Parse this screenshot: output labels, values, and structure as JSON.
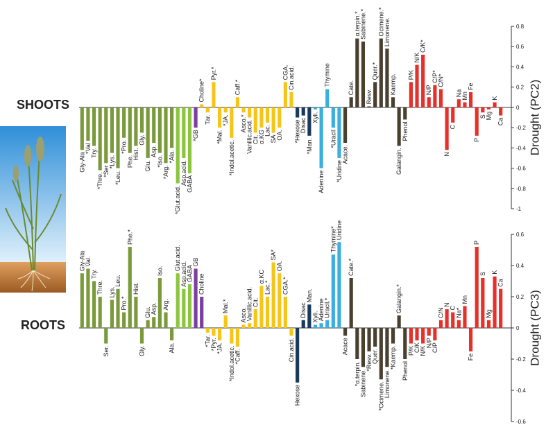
{
  "chart_data": [
    {
      "type": "bar",
      "title": "SHOOTS",
      "y_label": "Drought (PC2)",
      "categories": [
        "Gly-Ala",
        "*Val",
        "Try.",
        "*Thre.",
        "*Ser",
        "*Lys.",
        "*Leu.",
        "*Pro.",
        "Phe.",
        "Hist.",
        "Gly.",
        "Glu.",
        "Asp.",
        "*Iso.",
        "*Arg.",
        "*Ala.",
        "*Glut.acid.",
        "Asp.acid.",
        "GABA",
        "*GB",
        "Choline*",
        "Tar.",
        "Pyr.*",
        "*Mal.",
        "*JA.",
        "*Indol.acetic.",
        "Caff.*",
        "Asco.*",
        "Vanillic.acid.",
        "Cit.",
        "α.KG",
        "Lac.",
        "SA",
        "OA.",
        "CGA.",
        "Cin.acid.",
        "*Hexose",
        "Disac",
        "*Man.",
        "Xyli.",
        "Adenine",
        "Thymine",
        "*Uracil",
        "*Uridine",
        "Acace.",
        "Cate.",
        "α.terpin.*",
        "Sabinene.*",
        "Resv.",
        "Quer.*",
        "Ocimene.*",
        "Limonene.",
        "Kaemp.",
        "Galangin.",
        "Phenol",
        "P/K",
        "N/K",
        "C/K*",
        "N/P",
        "C/P*",
        "C/N*",
        "N",
        "C",
        "Na",
        "Mn",
        "Fe",
        "P",
        "S",
        "Mg",
        "K",
        "Ca"
      ],
      "values": [
        -0.42,
        -0.33,
        -0.38,
        -0.62,
        -0.55,
        -0.45,
        -0.6,
        -0.3,
        -0.45,
        -0.38,
        -0.25,
        -0.5,
        -0.35,
        -0.45,
        -0.55,
        -0.4,
        -0.75,
        -0.5,
        -0.65,
        -0.2,
        0.03,
        -0.05,
        0.25,
        -0.2,
        -0.05,
        -0.3,
        0.1,
        -0.05,
        -0.1,
        -0.25,
        -0.2,
        -0.15,
        -0.25,
        -0.2,
        0.25,
        0.15,
        -0.1,
        -0.08,
        -0.28,
        -0.02,
        -0.6,
        0.18,
        -0.2,
        -0.5,
        -0.35,
        0.1,
        0.68,
        0.65,
        0.01,
        0.25,
        0.68,
        0.58,
        0.1,
        -0.38,
        -0.12,
        0.25,
        0.42,
        0.52,
        0.1,
        0.22,
        0.18,
        -0.42,
        -0.15,
        0.08,
        0.05,
        0.15,
        -0.28,
        -0.05,
        -0.02,
        0.05,
        -0.08
      ],
      "colors": [
        "#7a9a3c",
        "#7a9a3c",
        "#7a9a3c",
        "#7a9a3c",
        "#7a9a3c",
        "#7a9a3c",
        "#7a9a3c",
        "#7a9a3c",
        "#7a9a3c",
        "#7a9a3c",
        "#7a9a3c",
        "#7a9a3c",
        "#7a9a3c",
        "#7a9a3c",
        "#7a9a3c",
        "#7a9a3c",
        "#8cc63f",
        "#8cc63f",
        "#8cc63f",
        "#7b3fa0",
        "#f5c518",
        "#f5c518",
        "#f5c518",
        "#f5c518",
        "#f5c518",
        "#f5c518",
        "#f5c518",
        "#f5c518",
        "#f5c518",
        "#f5c518",
        "#f5c518",
        "#f5c518",
        "#f5c518",
        "#f5c518",
        "#f5c518",
        "#f5c518",
        "#1a3a5c",
        "#1a3a5c",
        "#1a3a5c",
        "#3aaee0",
        "#3aaee0",
        "#3aaee0",
        "#3aaee0",
        "#3aaee0",
        "#4a4030",
        "#4a4030",
        "#4a4030",
        "#4a4030",
        "#4a4030",
        "#4a4030",
        "#4a4030",
        "#4a4030",
        "#4a4030",
        "#4a4030",
        "#4a4030",
        "#e8302a",
        "#e8302a",
        "#e8302a",
        "#e8302a",
        "#e8302a",
        "#e8302a",
        "#e8302a",
        "#e8302a",
        "#e8302a",
        "#e8302a",
        "#e8302a",
        "#e8302a",
        "#e8302a",
        "#e8302a",
        "#e8302a",
        "#e8302a"
      ],
      "ylim": [
        -1,
        0.8
      ],
      "yticks": [
        -1,
        -0.8,
        -0.6,
        -0.4,
        -0.2,
        0,
        0.2,
        0.4,
        0.6,
        0.8
      ]
    },
    {
      "type": "bar",
      "title": "ROOTS",
      "y_label": "Drought (PC3)",
      "categories": [
        "Gly-Ala",
        "Val.",
        "Try.",
        "Thre.",
        "Ser.",
        "Lys.",
        "Leu.",
        "Pro.*",
        "Phe.*",
        "Hist.",
        "Gly.",
        "Glu.",
        "Asp.",
        "Iso.",
        "Arg.",
        "Ala.",
        "Glut.acid.",
        "Asp.acid.",
        "GABA",
        "GB",
        "Choline",
        "*Tar.",
        "*Pyr.",
        "*JA.",
        "Mal.*",
        "*Indol.acetic.",
        "*Caff.",
        "Asco.",
        "Vanillic.acid.",
        "Cit.",
        "α.KC",
        "Lac.*",
        "SA*",
        "OA.",
        "CGA.*",
        "Cin.acid.",
        "Hexose",
        "Disac",
        "Man.",
        "Xyli.",
        "Adenine",
        "Uracil.*",
        "Thymine*",
        "Uridine",
        "Acace",
        "Cate.*",
        "*α.terpin.",
        "Sabinene.",
        "*Resv.",
        "Quer.",
        "*Ocimene.",
        "Limonene.",
        "*Kaemp.",
        "Galangin.*",
        "Phenol",
        "P/K",
        "C/K",
        "N/K",
        "N/P",
        "C/P",
        "C/N",
        "N",
        "C",
        "Na*",
        "Mn",
        "Fe",
        "P",
        "S",
        "Mg",
        "K",
        "Ca"
      ],
      "values": [
        0.35,
        0.38,
        0.3,
        0.2,
        -0.1,
        0.18,
        0.25,
        0.1,
        0.52,
        0.2,
        -0.1,
        0.05,
        0.07,
        0.32,
        0.1,
        -0.08,
        0.35,
        0.25,
        0.28,
        0.38,
        0.2,
        -0.03,
        -0.05,
        -0.08,
        0.08,
        -0.1,
        -0.12,
        0.02,
        0.03,
        0.12,
        0.27,
        0.2,
        0.42,
        0.35,
        0.2,
        -0.05,
        -0.35,
        0.05,
        0.15,
        0.02,
        0.03,
        0.05,
        0.47,
        0.55,
        -0.05,
        0.32,
        -0.2,
        -0.25,
        -0.15,
        -0.12,
        -0.33,
        -0.25,
        -0.1,
        0.08,
        -0.2,
        -0.1,
        -0.08,
        -0.1,
        -0.05,
        -0.08,
        0.05,
        0.12,
        0.1,
        0.05,
        0.14,
        -0.15,
        0.52,
        0.32,
        0.05,
        0.33,
        0.25
      ],
      "colors": [
        "#7a9a3c",
        "#7a9a3c",
        "#7a9a3c",
        "#7a9a3c",
        "#7a9a3c",
        "#7a9a3c",
        "#7a9a3c",
        "#7a9a3c",
        "#7a9a3c",
        "#7a9a3c",
        "#7a9a3c",
        "#7a9a3c",
        "#7a9a3c",
        "#7a9a3c",
        "#7a9a3c",
        "#7a9a3c",
        "#8cc63f",
        "#8cc63f",
        "#8cc63f",
        "#7b3fa0",
        "#7b3fa0",
        "#f5c518",
        "#f5c518",
        "#f5c518",
        "#f5c518",
        "#f5c518",
        "#f5c518",
        "#f5c518",
        "#f5c518",
        "#f5c518",
        "#f5c518",
        "#f5c518",
        "#f5c518",
        "#f5c518",
        "#f5c518",
        "#f5c518",
        "#1a3a5c",
        "#1a3a5c",
        "#1a3a5c",
        "#3aaee0",
        "#3aaee0",
        "#3aaee0",
        "#3aaee0",
        "#3aaee0",
        "#4a4030",
        "#4a4030",
        "#4a4030",
        "#4a4030",
        "#4a4030",
        "#4a4030",
        "#4a4030",
        "#4a4030",
        "#4a4030",
        "#4a4030",
        "#4a4030",
        "#e8302a",
        "#e8302a",
        "#e8302a",
        "#e8302a",
        "#e8302a",
        "#e8302a",
        "#e8302a",
        "#e8302a",
        "#e8302a",
        "#e8302a",
        "#e8302a",
        "#e8302a",
        "#e8302a",
        "#e8302a",
        "#e8302a",
        "#e8302a"
      ],
      "ylim": [
        -0.6,
        0.6
      ],
      "yticks": [
        -0.6,
        -0.4,
        -0.2,
        0,
        0.2,
        0.4,
        0.6
      ]
    }
  ]
}
